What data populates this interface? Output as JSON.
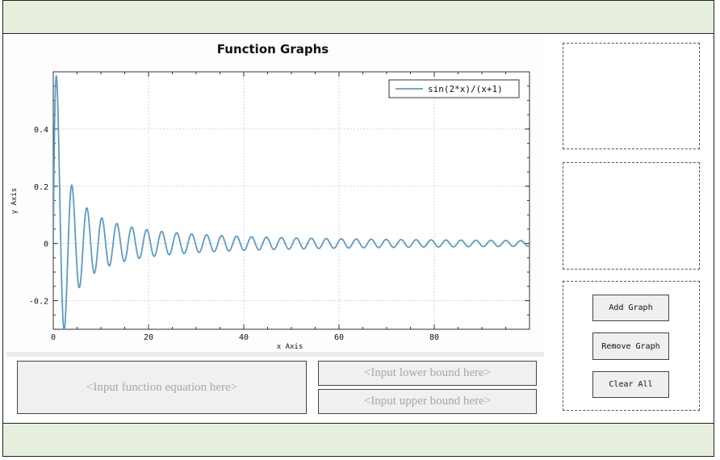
{
  "inputs": {
    "equation_placeholder": "<Input function equation here>",
    "lower_bound_placeholder": "<Input lower bound here>",
    "upper_bound_placeholder": "<Input upper bound here>"
  },
  "buttons": {
    "add_graph": "Add Graph",
    "remove_graph": "Remove Graph",
    "clear_all": "Clear All"
  },
  "chart_data": {
    "type": "line",
    "title": "Function Graphs",
    "xlabel": "x Axis",
    "ylabel": "y Axis",
    "xlim": [
      0,
      100
    ],
    "ylim": [
      -0.3,
      0.6
    ],
    "xticks": [
      "0",
      "20",
      "40",
      "60",
      "80"
    ],
    "xtick_values": [
      0,
      20,
      40,
      60,
      80
    ],
    "yticks": [
      "-0.2",
      "0",
      "0.2",
      "0.4"
    ],
    "ytick_values": [
      -0.2,
      0,
      0.2,
      0.4
    ],
    "grid": true,
    "legend_position": "top-right",
    "series": [
      {
        "name": "sin(2*x)/(x+1)",
        "expression": "sin(2*x)/(x+1)",
        "x_range": [
          0,
          100
        ],
        "color": "#5b9bc8"
      }
    ]
  }
}
